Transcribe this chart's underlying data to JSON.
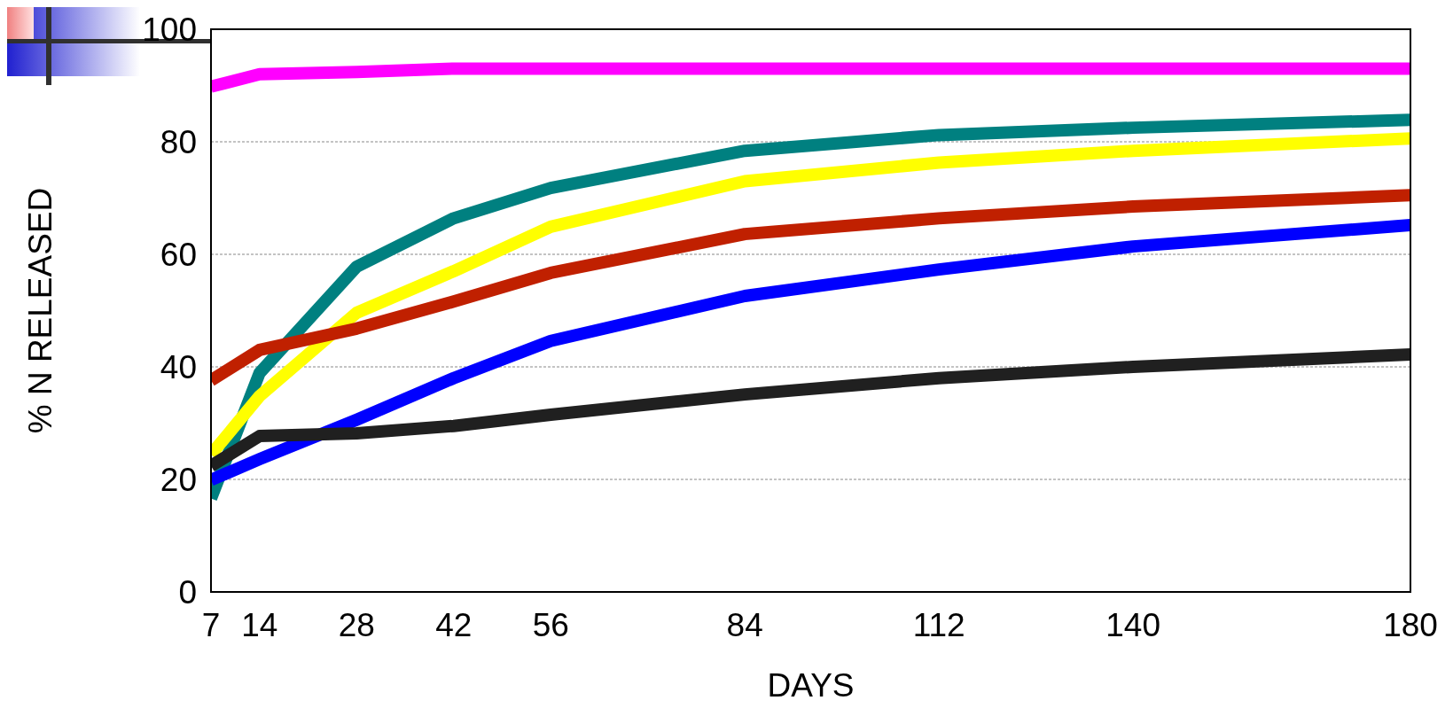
{
  "chart_data": {
    "type": "line",
    "xlabel": "DAYS",
    "ylabel": "% N RELEASED",
    "x": [
      7,
      14,
      28,
      42,
      56,
      84,
      112,
      140,
      180
    ],
    "series": [
      {
        "color": "#ff00ff",
        "values": [
          89.8,
          92,
          92.4,
          93,
          93,
          93,
          93,
          93,
          93
        ]
      },
      {
        "color": "#008080",
        "values": [
          16.6,
          38.9,
          57.8,
          66.4,
          71.8,
          78.4,
          81.2,
          82.5,
          83.9
        ]
      },
      {
        "color": "#ffff00",
        "values": [
          24.4,
          34.8,
          49.6,
          57,
          64.9,
          73,
          76.3,
          78.4,
          80.6
        ]
      },
      {
        "color": "#c02000",
        "values": [
          37.6,
          43,
          46.8,
          51.6,
          56.7,
          63.6,
          66.4,
          68.5,
          70.5
        ]
      },
      {
        "color": "#0000ff",
        "values": [
          19.9,
          23.6,
          30.6,
          38,
          44.6,
          52.6,
          57.3,
          61.4,
          65.2
        ]
      },
      {
        "color": "#202020",
        "values": [
          22.4,
          27.7,
          28.2,
          29.5,
          31.5,
          35.1,
          38,
          40,
          42.2
        ]
      }
    ],
    "xlim": [
      7,
      180
    ],
    "xticks": [
      7,
      14,
      28,
      42,
      56,
      84,
      112,
      140,
      180
    ],
    "ylim": [
      0,
      100
    ],
    "yticks": [
      0,
      20,
      40,
      60,
      80,
      100
    ],
    "grid": "y",
    "marker": "none",
    "line_style": "solid"
  }
}
